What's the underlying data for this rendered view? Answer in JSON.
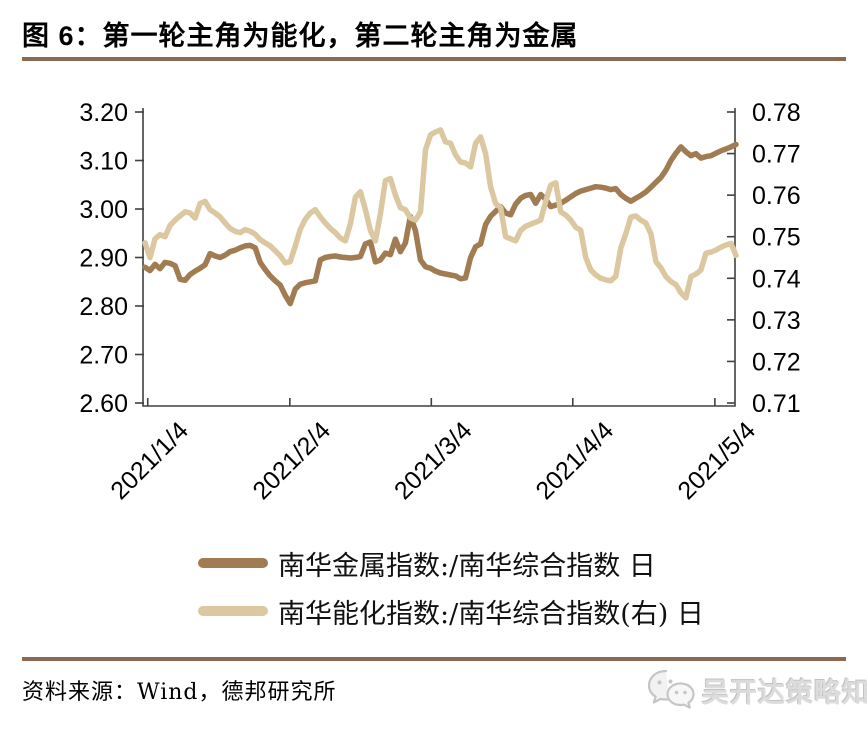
{
  "header": {
    "title": "图 6：第一轮主角为能化，第二轮主角为金属"
  },
  "footer": {
    "source_label": "资料来源：Wind，德邦研究所",
    "watermark": "吴开达策略知行"
  },
  "legend": {
    "items": [
      {
        "label": "南华金属指数:/南华综合指数 日",
        "color": "#A17C52"
      },
      {
        "label": "南华能化指数:/南华综合指数(右) 日",
        "color": "#DBC8A0"
      }
    ]
  },
  "colors": {
    "rule_brown": "#8a6a50",
    "axis": "#404040",
    "metal_line": "#A17C52",
    "energy_line": "#DBC8A0"
  },
  "chart_data": {
    "type": "line",
    "title": "图 6：第一轮主角为能化，第二轮主角为金属",
    "xlabel": "",
    "ylabel_left": "南华金属指数/南华综合指数",
    "ylabel_right": "南华能化指数/南华综合指数",
    "grid": false,
    "legend_position": "bottom",
    "x_ticks": {
      "labels": [
        "2021/1/4",
        "2021/2/4",
        "2021/3/4",
        "2021/4/4",
        "2021/5/4"
      ],
      "fracs": [
        0.008,
        0.248,
        0.487,
        0.726,
        0.966
      ]
    },
    "left_axis": {
      "min": 2.6,
      "max": 3.2,
      "ticks": [
        "3.20",
        "3.10",
        "3.00",
        "2.90",
        "2.80",
        "2.70",
        "2.60"
      ]
    },
    "right_axis": {
      "min": 0.71,
      "max": 0.78,
      "ticks": [
        "0.78",
        "0.77",
        "0.76",
        "0.75",
        "0.74",
        "0.73",
        "0.72",
        "0.71"
      ]
    },
    "series": [
      {
        "name": "南华金属指数:/南华综合指数 日",
        "data_name": "metal-ratio-line",
        "axis": "left",
        "color": "#A17C52",
        "values": [
          2.88,
          2.873,
          2.886,
          2.877,
          2.89,
          2.888,
          2.883,
          2.855,
          2.853,
          2.865,
          2.872,
          2.878,
          2.885,
          2.908,
          2.903,
          2.9,
          2.905,
          2.912,
          2.915,
          2.92,
          2.924,
          2.925,
          2.92,
          2.89,
          2.875,
          2.862,
          2.852,
          2.843,
          2.822,
          2.805,
          2.835,
          2.845,
          2.848,
          2.85,
          2.852,
          2.895,
          2.9,
          2.902,
          2.903,
          2.901,
          2.9,
          2.899,
          2.9,
          2.902,
          2.928,
          2.932,
          2.891,
          2.895,
          2.909,
          2.906,
          2.938,
          2.912,
          2.93,
          2.985,
          2.955,
          2.895,
          2.881,
          2.878,
          2.872,
          2.868,
          2.866,
          2.864,
          2.862,
          2.856,
          2.858,
          2.9,
          2.922,
          2.928,
          2.968,
          2.985,
          2.995,
          3.005,
          2.992,
          2.988,
          3.01,
          3.022,
          3.028,
          3.03,
          3.012,
          3.03,
          3.02,
          3.005,
          3.008,
          3.012,
          3.018,
          3.025,
          3.032,
          3.037,
          3.04,
          3.043,
          3.046,
          3.045,
          3.043,
          3.04,
          3.042,
          3.03,
          3.022,
          3.016,
          3.022,
          3.028,
          3.035,
          3.045,
          3.055,
          3.065,
          3.08,
          3.1,
          3.115,
          3.128,
          3.118,
          3.11,
          3.114,
          3.105,
          3.108,
          3.11,
          3.115,
          3.12,
          3.124,
          3.128,
          3.133
        ]
      },
      {
        "name": "南华能化指数:/南华综合指数(右) 日",
        "data_name": "energy-ratio-line",
        "axis": "right",
        "color": "#DBC8A0",
        "values": [
          0.7485,
          0.745,
          0.7495,
          0.7505,
          0.75,
          0.7527,
          0.754,
          0.755,
          0.756,
          0.7557,
          0.7545,
          0.758,
          0.7585,
          0.7565,
          0.7557,
          0.7548,
          0.7533,
          0.752,
          0.7513,
          0.751,
          0.7517,
          0.7513,
          0.7506,
          0.7493,
          0.7485,
          0.7478,
          0.7466,
          0.7454,
          0.7437,
          0.744,
          0.7478,
          0.7518,
          0.7542,
          0.7557,
          0.7565,
          0.7548,
          0.7533,
          0.752,
          0.751,
          0.7497,
          0.749,
          0.753,
          0.7595,
          0.7608,
          0.7565,
          0.7515,
          0.749,
          0.7555,
          0.7635,
          0.764,
          0.76,
          0.757,
          0.7565,
          0.7545,
          0.754,
          0.756,
          0.7709,
          0.7745,
          0.7752,
          0.7757,
          0.7728,
          0.7725,
          0.7697,
          0.768,
          0.7677,
          0.7668,
          0.7725,
          0.774,
          0.77,
          0.762,
          0.758,
          0.757,
          0.75,
          0.7495,
          0.749,
          0.7515,
          0.7525,
          0.753,
          0.7535,
          0.754,
          0.7585,
          0.7624,
          0.763,
          0.756,
          0.7552,
          0.754,
          0.7523,
          0.7516,
          0.745,
          0.742,
          0.7408,
          0.74,
          0.7396,
          0.7394,
          0.7405,
          0.7473,
          0.7507,
          0.7547,
          0.755,
          0.754,
          0.7533,
          0.7507,
          0.744,
          0.7425,
          0.7404,
          0.7392,
          0.7385,
          0.7365,
          0.7353,
          0.7404,
          0.741,
          0.742,
          0.746,
          0.7463,
          0.7468,
          0.7475,
          0.748,
          0.7484,
          0.7455
        ]
      }
    ]
  }
}
